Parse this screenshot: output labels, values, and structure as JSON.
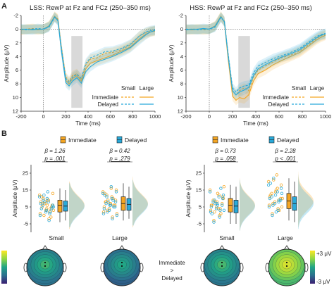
{
  "figure": {
    "panel_a_letter": "A",
    "panel_b_letter": "B",
    "comparison_label": [
      "Immediate",
      ">",
      "Delayed"
    ],
    "colorbar_top": "+3 μV",
    "colorbar_bottom": "-3 μV"
  },
  "colors": {
    "immediate": "#f5a623",
    "delayed": "#29a9d9",
    "shade": "#d9d9d9",
    "mixed": "#b9cc9a"
  },
  "chart_data": [
    {
      "type": "line",
      "title": "LSS: RewP at Fz and FCz (250–350 ms)",
      "xlabel": "Time (ms)",
      "ylabel": "Amplitude (μV)",
      "xlim": [
        -200,
        1000
      ],
      "ylim": [
        12,
        -2
      ],
      "y_inverted": true,
      "xticks": [
        -200,
        0,
        200,
        400,
        600,
        800,
        1000
      ],
      "yticks": [
        -2,
        0,
        2,
        4,
        6,
        8,
        10,
        12
      ],
      "shaded_window": [
        250,
        350
      ],
      "legend": {
        "placement": "bottom-right",
        "col_headers": [
          "Small",
          "Large"
        ],
        "rows": [
          "Immediate",
          "Delayed"
        ]
      },
      "x": [
        -200,
        -150,
        -100,
        -50,
        0,
        50,
        100,
        130,
        160,
        200,
        230,
        260,
        300,
        340,
        380,
        420,
        480,
        550,
        620,
        700,
        780,
        860,
        920,
        960,
        1000
      ],
      "series": [
        {
          "name": "Immediate Small",
          "condition": "Immediate",
          "magnitude": "Small",
          "values": [
            0.1,
            0.0,
            -0.1,
            0.0,
            0.0,
            -0.4,
            -1.8,
            -1.5,
            2.5,
            7.0,
            7.6,
            6.8,
            6.5,
            7.4,
            5.2,
            4.4,
            4.2,
            3.5,
            3.4,
            3.0,
            2.3,
            1.0,
            0.5,
            0.3,
            0.2
          ]
        },
        {
          "name": "Immediate Large",
          "condition": "Immediate",
          "magnitude": "Large",
          "values": [
            0.1,
            0.0,
            0.0,
            0.1,
            0.0,
            -0.5,
            -1.9,
            -1.4,
            3.0,
            7.5,
            8.0,
            7.2,
            6.8,
            7.6,
            5.8,
            5.0,
            4.6,
            4.2,
            3.8,
            3.2,
            2.6,
            1.4,
            0.7,
            0.4,
            0.3
          ]
        },
        {
          "name": "Delayed Small",
          "condition": "Delayed",
          "magnitude": "Small",
          "values": [
            0.0,
            0.1,
            0.0,
            -0.1,
            0.0,
            -0.3,
            -1.7,
            -1.3,
            2.6,
            7.2,
            7.8,
            7.0,
            6.6,
            7.2,
            5.0,
            4.2,
            3.8,
            3.3,
            3.2,
            2.8,
            2.2,
            1.0,
            0.4,
            0.2,
            0.1
          ]
        },
        {
          "name": "Delayed Large",
          "condition": "Delayed",
          "magnitude": "Large",
          "values": [
            0.0,
            0.0,
            0.1,
            0.0,
            0.0,
            -0.4,
            -1.8,
            -1.2,
            3.1,
            7.8,
            8.3,
            7.6,
            7.1,
            7.9,
            6.2,
            5.5,
            4.8,
            4.4,
            4.0,
            3.4,
            2.7,
            1.6,
            0.8,
            0.4,
            0.2
          ]
        }
      ]
    },
    {
      "type": "line",
      "title": "HSS: RewP at Fz and FCz (250–350 ms)",
      "xlabel": "Time (ms)",
      "ylabel": "Amplitude (μV)",
      "xlim": [
        -200,
        1000
      ],
      "ylim": [
        12,
        -2
      ],
      "y_inverted": true,
      "xticks": [
        -200,
        0,
        200,
        400,
        600,
        800,
        1000
      ],
      "yticks": [
        -2,
        0,
        2,
        4,
        6,
        8,
        10,
        12
      ],
      "shaded_window": [
        250,
        350
      ],
      "legend": {
        "placement": "bottom-right",
        "col_headers": [
          "Small",
          "Large"
        ],
        "rows": [
          "Immediate",
          "Delayed"
        ]
      },
      "x": [
        -200,
        -150,
        -100,
        -50,
        0,
        50,
        100,
        130,
        160,
        200,
        230,
        260,
        300,
        340,
        380,
        420,
        480,
        550,
        620,
        700,
        780,
        860,
        920,
        960,
        1000
      ],
      "series": [
        {
          "name": "Immediate Small",
          "condition": "Immediate",
          "magnitude": "Small",
          "values": [
            0.1,
            0.0,
            0.0,
            0.1,
            0.0,
            -0.4,
            -1.8,
            -1.2,
            3.5,
            9.0,
            9.6,
            9.0,
            8.6,
            9.0,
            7.0,
            6.0,
            5.4,
            4.8,
            4.2,
            3.8,
            3.2,
            2.2,
            1.4,
            1.0,
            0.8
          ]
        },
        {
          "name": "Immediate Large",
          "condition": "Immediate",
          "magnitude": "Large",
          "values": [
            0.0,
            0.1,
            0.0,
            0.0,
            0.0,
            -0.5,
            -1.9,
            -1.0,
            4.0,
            9.8,
            10.4,
            10.0,
            10.2,
            9.6,
            7.6,
            6.5,
            6.0,
            5.2,
            4.6,
            4.0,
            3.4,
            2.4,
            1.6,
            1.2,
            0.9
          ]
        },
        {
          "name": "Delayed Small",
          "condition": "Delayed",
          "magnitude": "Small",
          "values": [
            0.0,
            0.0,
            0.1,
            0.0,
            0.0,
            -0.3,
            -1.7,
            -1.1,
            3.3,
            8.6,
            9.2,
            8.6,
            8.3,
            8.2,
            6.4,
            5.4,
            4.9,
            4.3,
            3.9,
            3.4,
            2.8,
            1.8,
            1.1,
            0.8,
            0.6
          ]
        },
        {
          "name": "Delayed Large",
          "condition": "Delayed",
          "magnitude": "Large",
          "values": [
            0.1,
            0.0,
            0.0,
            -0.1,
            0.0,
            -0.4,
            -1.8,
            -1.1,
            3.6,
            9.0,
            9.6,
            9.2,
            8.9,
            8.5,
            6.8,
            5.8,
            5.2,
            4.6,
            4.1,
            3.6,
            3.0,
            2.0,
            1.3,
            0.9,
            0.7
          ]
        }
      ]
    },
    {
      "type": "scatter",
      "subtype": "raincloud",
      "group": "LSS",
      "ylabel": "Amplitude (μV)",
      "yticks": [
        -5,
        5,
        15,
        25
      ],
      "ylim": [
        -10,
        30
      ],
      "legend": [
        "Immediate",
        "Delayed"
      ],
      "categories": [
        "Small",
        "Large"
      ],
      "stats": [
        {
          "beta": "β = 1.26",
          "p": "p = .001"
        },
        {
          "beta": "β = 0.42",
          "p": "p = .279"
        }
      ],
      "boxes": [
        {
          "category": "Small",
          "condition": "Immediate",
          "median": 6,
          "q1": 2,
          "q3": 9,
          "whisker_low": -4,
          "whisker_high": 16
        },
        {
          "category": "Small",
          "condition": "Delayed",
          "median": 5.5,
          "q1": 2.5,
          "q3": 8.5,
          "whisker_low": -3,
          "whisker_high": 15
        },
        {
          "category": "Large",
          "condition": "Immediate",
          "median": 7,
          "q1": 3,
          "q3": 11,
          "whisker_low": -3,
          "whisker_high": 19
        },
        {
          "category": "Large",
          "condition": "Delayed",
          "median": 6.5,
          "q1": 3,
          "q3": 10,
          "whisker_low": -2,
          "whisker_high": 17
        }
      ],
      "points": [
        {
          "category": "Small",
          "condition": "Immediate",
          "values": [
            12,
            9,
            7,
            5,
            3,
            1,
            -2,
            10,
            6,
            4,
            8,
            2,
            0,
            13,
            6,
            11,
            4,
            7,
            3,
            9,
            5,
            -1,
            8
          ]
        },
        {
          "category": "Small",
          "condition": "Delayed",
          "values": [
            11,
            8,
            6,
            4,
            2,
            0,
            -3,
            9,
            5,
            3,
            7,
            1,
            12,
            6,
            10,
            4,
            2,
            8,
            5,
            14
          ]
        },
        {
          "category": "Large",
          "condition": "Immediate",
          "values": [
            14,
            11,
            8,
            6,
            4,
            2,
            -1,
            12,
            9,
            7,
            5,
            10,
            3,
            15,
            7,
            13,
            6,
            9,
            1,
            16,
            8
          ]
        },
        {
          "category": "Large",
          "condition": "Delayed",
          "values": [
            13,
            10,
            7,
            5,
            3,
            1,
            -2,
            11,
            8,
            6,
            4,
            9,
            2,
            14,
            6,
            12,
            5,
            8,
            0,
            17
          ]
        }
      ]
    },
    {
      "type": "scatter",
      "subtype": "raincloud",
      "group": "HSS",
      "ylabel": "Amplitude (μV)",
      "yticks": [
        -5,
        5,
        15,
        25
      ],
      "ylim": [
        -10,
        30
      ],
      "legend": [
        "Immediate",
        "Delayed"
      ],
      "categories": [
        "Small",
        "Large"
      ],
      "stats": [
        {
          "beta": "β = 0.73",
          "p": "p = .058"
        },
        {
          "beta": "β = 2.28",
          "p": "p < .001"
        }
      ],
      "boxes": [
        {
          "category": "Small",
          "condition": "Immediate",
          "median": 6,
          "q1": 2,
          "q3": 10,
          "whisker_low": -5,
          "whisker_high": 18
        },
        {
          "category": "Small",
          "condition": "Delayed",
          "median": 5.5,
          "q1": 1.5,
          "q3": 9,
          "whisker_low": -5,
          "whisker_high": 17
        },
        {
          "category": "Large",
          "condition": "Immediate",
          "median": 8.5,
          "q1": 4,
          "q3": 13,
          "whisker_low": -3,
          "whisker_high": 22
        },
        {
          "category": "Large",
          "condition": "Delayed",
          "median": 7,
          "q1": 3,
          "q3": 11,
          "whisker_low": -4,
          "whisker_high": 20
        }
      ],
      "points": [
        {
          "category": "Small",
          "condition": "Immediate",
          "values": [
            15,
            12,
            9,
            7,
            5,
            3,
            0,
            -3,
            11,
            8,
            6,
            4,
            2,
            10,
            13,
            6,
            1,
            8,
            17,
            4
          ]
        },
        {
          "category": "Small",
          "condition": "Delayed",
          "values": [
            14,
            11,
            8,
            6,
            4,
            2,
            -1,
            -4,
            10,
            7,
            5,
            3,
            9,
            12,
            6,
            1,
            16,
            7,
            3
          ]
        },
        {
          "category": "Large",
          "condition": "Immediate",
          "values": [
            20,
            16,
            13,
            10,
            8,
            6,
            4,
            1,
            18,
            14,
            11,
            9,
            7,
            5,
            15,
            12,
            3,
            21,
            10,
            24
          ]
        },
        {
          "category": "Large",
          "condition": "Delayed",
          "values": [
            18,
            14,
            11,
            9,
            7,
            5,
            3,
            0,
            16,
            12,
            10,
            8,
            6,
            13,
            2,
            19,
            9,
            22
          ]
        }
      ]
    },
    {
      "type": "heatmap",
      "subtype": "topomap",
      "maps": [
        {
          "group": "LSS",
          "category": "Small",
          "peak_uv": 0.8
        },
        {
          "group": "LSS",
          "category": "Large",
          "peak_uv": 0.4
        },
        {
          "group": "HSS",
          "category": "Small",
          "peak_uv": 0.9
        },
        {
          "group": "HSS",
          "category": "Large",
          "peak_uv": 2.8
        }
      ],
      "color_range": [
        -3,
        3
      ],
      "colorbar_labels": [
        "+3 μV",
        "-3 μV"
      ]
    }
  ]
}
